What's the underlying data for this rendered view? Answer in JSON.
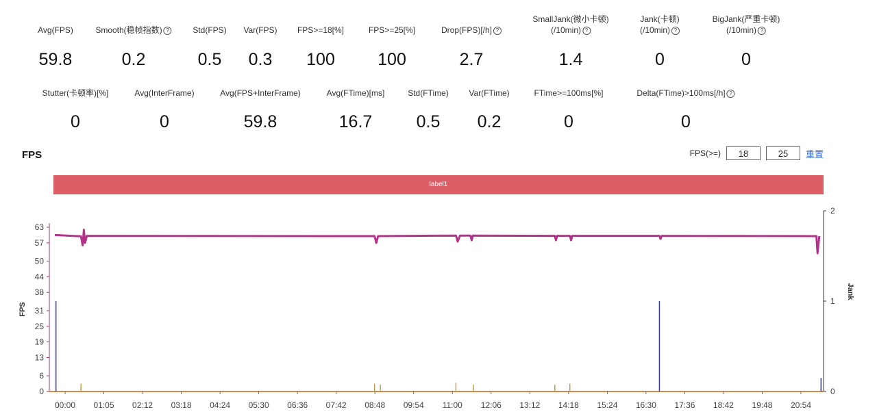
{
  "metrics_row1": [
    {
      "label": "Avg(FPS)",
      "value": "59.8",
      "help": false
    },
    {
      "label": "Smooth(稳帧指数)",
      "value": "0.2",
      "help": true
    },
    {
      "label": "Std(FPS)",
      "value": "0.5",
      "help": false
    },
    {
      "label": "Var(FPS)",
      "value": "0.3",
      "help": false
    },
    {
      "label": "FPS>=18[%]",
      "value": "100",
      "help": false
    },
    {
      "label": "FPS>=25[%]",
      "value": "100",
      "help": false
    },
    {
      "label": "Drop(FPS)[/h]",
      "value": "2.7",
      "help": true
    },
    {
      "label": "SmallJank(微小卡顿)",
      "label2": "(/10min)",
      "value": "1.4",
      "help": true
    },
    {
      "label": "Jank(卡顿)",
      "label2": "(/10min)",
      "value": "0",
      "help": true
    },
    {
      "label": "BigJank(严重卡顿)",
      "label2": "(/10min)",
      "value": "0",
      "help": true
    }
  ],
  "metrics_row2": [
    {
      "label": "Stutter(卡顿率)[%]",
      "value": "0",
      "help": false
    },
    {
      "label": "Avg(InterFrame)",
      "value": "0",
      "help": false
    },
    {
      "label": "Avg(FPS+InterFrame)",
      "value": "59.8",
      "help": false
    },
    {
      "label": "Avg(FTime)[ms]",
      "value": "16.7",
      "help": false
    },
    {
      "label": "Std(FTime)",
      "value": "0.5",
      "help": false
    },
    {
      "label": "Var(FTime)",
      "value": "0.2",
      "help": false
    },
    {
      "label": "FTime>=100ms[%]",
      "value": "0",
      "help": false
    },
    {
      "label": "Delta(FTime)>100ms[/h]",
      "value": "0",
      "help": true
    }
  ],
  "help_glyph": "?",
  "chart_title": "FPS",
  "thresholds": {
    "label": "FPS(>=)",
    "value1": "18",
    "value2": "25",
    "reset": "重置"
  },
  "label_bar_text": "label1",
  "colors": {
    "fps_line": "#b4338a",
    "jank_line": "#3a3fa8",
    "small_jank": "#b8a24a",
    "label_bar": "#dc5f67",
    "axis_line": "#d98a4a"
  },
  "chart_data": {
    "type": "line",
    "xlabel": "",
    "ylabel": "FPS",
    "y2label": "Jank",
    "x_ticks": [
      "00:00",
      "01:05",
      "02:12",
      "03:18",
      "04:24",
      "05:30",
      "06:36",
      "07:42",
      "08:48",
      "09:54",
      "11:00",
      "12:06",
      "13:12",
      "14:18",
      "15:24",
      "16:30",
      "17:36",
      "18:42",
      "19:48",
      "20:54"
    ],
    "y_ticks": [
      0,
      6,
      13,
      19,
      25,
      31,
      38,
      44,
      50,
      57,
      63
    ],
    "ylim": [
      0,
      63
    ],
    "y2_ticks": [
      0,
      1,
      2
    ],
    "y2lim": [
      0,
      2
    ],
    "xlim_seconds": [
      0,
      1320
    ],
    "grid": false,
    "series": [
      {
        "name": "FPS",
        "baseline": 59.8,
        "points": [
          [
            0,
            60
          ],
          [
            45,
            59.5
          ],
          [
            48,
            56
          ],
          [
            50,
            62
          ],
          [
            52,
            57
          ],
          [
            55,
            59.7
          ],
          [
            550,
            59.6
          ],
          [
            553,
            57
          ],
          [
            556,
            59.6
          ],
          [
            690,
            59.8
          ],
          [
            693,
            57.5
          ],
          [
            697,
            59.8
          ],
          [
            715,
            59.8
          ],
          [
            717,
            58
          ],
          [
            719,
            59.8
          ],
          [
            860,
            59.7
          ],
          [
            862,
            58
          ],
          [
            864,
            59.7
          ],
          [
            886,
            59.7
          ],
          [
            888,
            58
          ],
          [
            890,
            59.7
          ],
          [
            1040,
            59.7
          ],
          [
            1042,
            58.5
          ],
          [
            1044,
            59.7
          ],
          [
            1310,
            59.6
          ],
          [
            1312,
            53
          ],
          [
            1315,
            59.6
          ]
        ]
      },
      {
        "name": "Jank",
        "points": [
          [
            2,
            1
          ],
          [
            1040,
            1
          ],
          [
            1318,
            0.15
          ]
        ]
      },
      {
        "name": "SmallJank",
        "points": [
          [
            45,
            0.04
          ],
          [
            550,
            0.04
          ],
          [
            560,
            0.03
          ],
          [
            690,
            0.05
          ],
          [
            720,
            0.03
          ],
          [
            860,
            0.03
          ],
          [
            886,
            0.04
          ]
        ]
      }
    ]
  }
}
